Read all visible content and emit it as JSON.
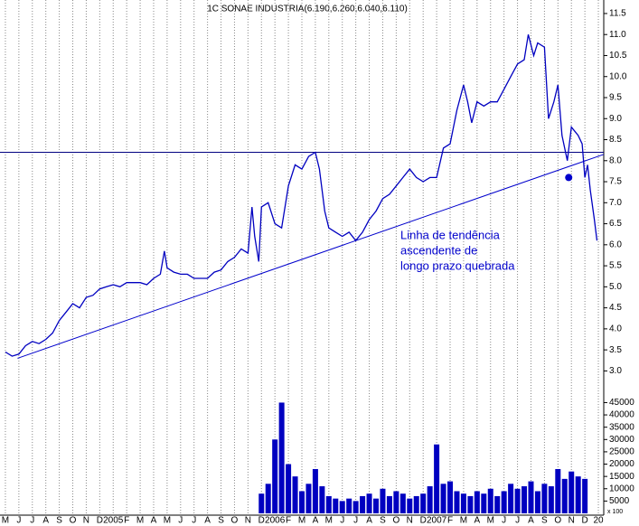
{
  "chart_data": {
    "type": "line",
    "title": "1C SONAE INDUSTRIA(6.190,6.260,6.040,6.110)",
    "color": "#0000c0",
    "xlim": [
      -0.4,
      44.4
    ],
    "xticks": [
      {
        "value": 0,
        "label": "M"
      },
      {
        "value": 1,
        "label": "J"
      },
      {
        "value": 2,
        "label": "J"
      },
      {
        "value": 3,
        "label": "A"
      },
      {
        "value": 4,
        "label": "S"
      },
      {
        "value": 5,
        "label": "O"
      },
      {
        "value": 6,
        "label": "N"
      },
      {
        "value": 7,
        "label": "D"
      },
      {
        "value": 8,
        "label": "2005"
      },
      {
        "value": 9,
        "label": "F"
      },
      {
        "value": 10,
        "label": "M"
      },
      {
        "value": 11,
        "label": "A"
      },
      {
        "value": 12,
        "label": "M"
      },
      {
        "value": 13,
        "label": "J"
      },
      {
        "value": 14,
        "label": "J"
      },
      {
        "value": 15,
        "label": "A"
      },
      {
        "value": 16,
        "label": "S"
      },
      {
        "value": 17,
        "label": "O"
      },
      {
        "value": 18,
        "label": "N"
      },
      {
        "value": 19,
        "label": "D"
      },
      {
        "value": 20,
        "label": "2006"
      },
      {
        "value": 21,
        "label": "F"
      },
      {
        "value": 22,
        "label": "M"
      },
      {
        "value": 23,
        "label": "A"
      },
      {
        "value": 24,
        "label": "M"
      },
      {
        "value": 25,
        "label": "J"
      },
      {
        "value": 26,
        "label": "J"
      },
      {
        "value": 27,
        "label": "A"
      },
      {
        "value": 28,
        "label": "S"
      },
      {
        "value": 29,
        "label": "O"
      },
      {
        "value": 30,
        "label": "N"
      },
      {
        "value": 31,
        "label": "D"
      },
      {
        "value": 32,
        "label": "2007"
      },
      {
        "value": 33,
        "label": "F"
      },
      {
        "value": 34,
        "label": "M"
      },
      {
        "value": 35,
        "label": "A"
      },
      {
        "value": 36,
        "label": "M"
      },
      {
        "value": 37,
        "label": "J"
      },
      {
        "value": 38,
        "label": "J"
      },
      {
        "value": 39,
        "label": "A"
      },
      {
        "value": 40,
        "label": "S"
      },
      {
        "value": 41,
        "label": "O"
      },
      {
        "value": 42,
        "label": "N"
      },
      {
        "value": 43,
        "label": "D"
      },
      {
        "value": 44,
        "label": "20"
      }
    ],
    "ylim": [
      2.6,
      11.8
    ],
    "yticks": [
      {
        "value": 3,
        "label": "3.0"
      },
      3.5,
      {
        "value": 4,
        "label": "4.0"
      },
      4.5,
      {
        "value": 5,
        "label": "5.0"
      },
      5.5,
      {
        "value": 6,
        "label": "6.0"
      },
      6.5,
      {
        "value": 7,
        "label": "7.0"
      },
      7.5,
      {
        "value": 8,
        "label": "8.0"
      },
      8.5,
      {
        "value": 9,
        "label": "9.0"
      },
      9.5,
      {
        "value": 10,
        "label": "10.0"
      },
      10.5,
      {
        "value": 11,
        "label": "11.0"
      },
      11.5
    ],
    "price": {
      "x": [
        0,
        0.5,
        1,
        1.5,
        2,
        2.5,
        3,
        3.5,
        4,
        4.5,
        5,
        5.5,
        6,
        6.5,
        7,
        7.5,
        8,
        8.5,
        9,
        9.5,
        10,
        10.5,
        11,
        11.5,
        11.8,
        12,
        12.5,
        13,
        13.5,
        14,
        14.5,
        15,
        15.5,
        16,
        16.5,
        17,
        17.5,
        18,
        18.3,
        18.5,
        18.8,
        19,
        19.5,
        20,
        20.5,
        21,
        21.5,
        22,
        22.5,
        23,
        23.3,
        23.7,
        24,
        24.5,
        25,
        25.5,
        26,
        26.5,
        27,
        27.5,
        28,
        28.5,
        29,
        29.5,
        30,
        30.5,
        31,
        31.5,
        32,
        32.5,
        33,
        33.5,
        34,
        34.3,
        34.6,
        35,
        35.5,
        36,
        36.5,
        37,
        37.5,
        38,
        38.5,
        38.8,
        39.2,
        39.5,
        40,
        40.3,
        40.7,
        41,
        41.3,
        41.7,
        42,
        42.5,
        42.8,
        43,
        43.2,
        43.4,
        43.7,
        43.9
      ],
      "values": [
        3.45,
        3.35,
        3.4,
        3.6,
        3.7,
        3.65,
        3.75,
        3.9,
        4.2,
        4.4,
        4.6,
        4.5,
        4.75,
        4.8,
        4.95,
        5,
        5.05,
        5,
        5.1,
        5.1,
        5.1,
        5.05,
        5.2,
        5.3,
        5.85,
        5.45,
        5.35,
        5.3,
        5.3,
        5.2,
        5.2,
        5.2,
        5.35,
        5.4,
        5.6,
        5.7,
        5.9,
        5.8,
        6.9,
        6.2,
        5.6,
        6.9,
        7,
        6.5,
        6.4,
        7.4,
        7.9,
        7.8,
        8.1,
        8.2,
        7.8,
        6.8,
        6.4,
        6.3,
        6.2,
        6.3,
        6.1,
        6.3,
        6.6,
        6.8,
        7.1,
        7.2,
        7.4,
        7.6,
        7.8,
        7.6,
        7.5,
        7.6,
        7.6,
        8.3,
        8.4,
        9.2,
        9.8,
        9.4,
        8.9,
        9.4,
        9.3,
        9.4,
        9.4,
        9.7,
        10,
        10.3,
        10.4,
        11,
        10.5,
        10.8,
        10.7,
        9,
        9.4,
        9.8,
        8.6,
        8,
        8.8,
        8.6,
        8.4,
        7.6,
        7.9,
        7.3,
        6.6,
        6.1
      ]
    },
    "resistance": 8.2,
    "trendline": {
      "x": [
        0.9,
        44.4
      ],
      "values": [
        3.3,
        8.15
      ]
    },
    "marker": {
      "x": 41.8,
      "value": 7.6
    },
    "annotation": [
      "Linha de tendência",
      "ascendente de",
      "longo prazo quebrada"
    ],
    "volume": {
      "ylim": [
        0,
        47000
      ],
      "yticks": [
        5000,
        10000,
        15000,
        20000,
        25000,
        30000,
        35000,
        40000,
        45000
      ],
      "unit": "x 100",
      "x": [
        19,
        19.5,
        20,
        20.5,
        21,
        21.5,
        22,
        22.5,
        23,
        23.5,
        24,
        24.5,
        25,
        25.5,
        26,
        26.5,
        27,
        27.5,
        28,
        28.5,
        29,
        29.5,
        30,
        30.5,
        31,
        31.5,
        32,
        32.5,
        33,
        33.5,
        34,
        34.5,
        35,
        35.5,
        36,
        36.5,
        37,
        37.5,
        38,
        38.5,
        39,
        39.5,
        40,
        40.5,
        41,
        41.5,
        42,
        42.5,
        43
      ],
      "values": [
        8000,
        12000,
        30000,
        45000,
        20000,
        15000,
        9000,
        12000,
        18000,
        11000,
        7000,
        6000,
        5000,
        6000,
        5000,
        7000,
        8000,
        6000,
        10000,
        7000,
        9000,
        8000,
        6000,
        7000,
        8000,
        11000,
        28000,
        12000,
        13000,
        9000,
        8000,
        7000,
        9000,
        8000,
        10000,
        7000,
        9000,
        12000,
        10000,
        11000,
        13000,
        9000,
        12000,
        11000,
        18000,
        14000,
        17000,
        15000,
        14000
      ]
    }
  }
}
